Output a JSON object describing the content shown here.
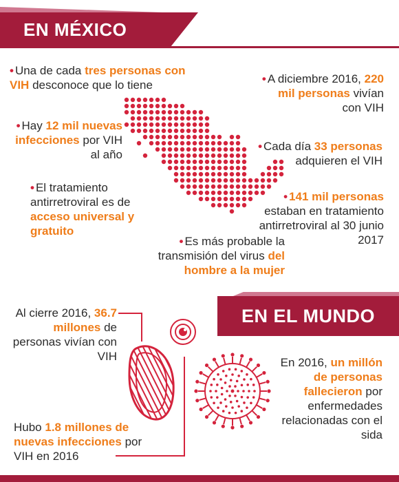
{
  "mexico": {
    "title": "EN MÉXICO",
    "facts": [
      {
        "pre": "Una de cada ",
        "hl": "tres personas con VIH",
        "post": " desconoce que lo tiene"
      },
      {
        "pre": "Hay ",
        "hl": "12 mil nuevas infecciones",
        "post": " por VIH al año"
      },
      {
        "pre": "El tratamiento antirretroviral es de ",
        "hl": "acceso universal y gratuito",
        "post": ""
      },
      {
        "pre": "Es más probable la transmisión del virus ",
        "hl": "del hombre a la mujer",
        "post": ""
      },
      {
        "pre": "A diciembre 2016, ",
        "hl": "220 mil personas",
        "post": " vivían con VIH"
      },
      {
        "pre": "Cada día ",
        "hl": "33 personas",
        "post": " adquieren el VIH"
      },
      {
        "pre": "",
        "hl": "141 mil personas",
        "post": " estaban en tratamiento antirretroviral al 30 junio 2017"
      }
    ]
  },
  "world": {
    "title": "EN EL MUNDO",
    "facts": [
      {
        "pre": "Al cierre 2016, ",
        "hl": "36.7 millones",
        "post": " de personas vivían con VIH"
      },
      {
        "pre": "Hubo ",
        "hl": "1.8 millones de nuevas infecciones",
        "post": " por VIH en 2016"
      },
      {
        "pre": "En 2016, ",
        "hl": "un millón de personas fallecieron",
        "post": " por enfermedades relacionadas con el sida"
      }
    ]
  },
  "colors": {
    "brand": "#a31c3b",
    "highlight": "#ef7d1a",
    "dot": "#d4233c"
  },
  "icons": [
    "mexico-dot-map-icon",
    "virus-cell-icon",
    "red-blood-cell-icon",
    "small-virus-icon"
  ]
}
